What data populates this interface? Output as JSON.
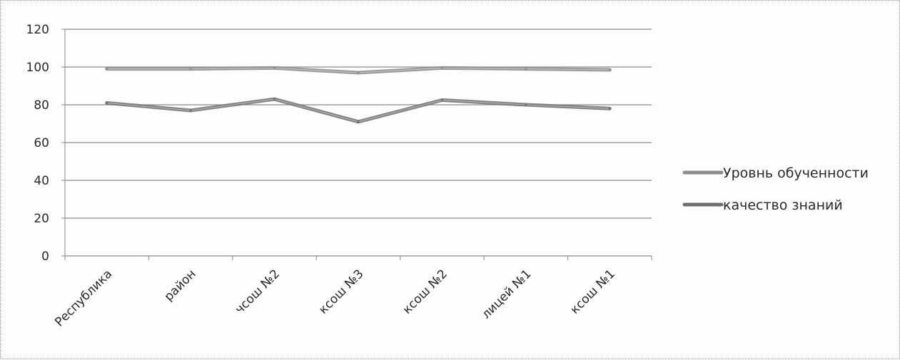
{
  "chart_data": {
    "type": "line",
    "title": "",
    "xlabel": "",
    "ylabel": "",
    "categories": [
      "Республика",
      "район",
      "чсош №2",
      "ксош №3",
      "ксош №2",
      "лицей №1",
      "ксош №1"
    ],
    "ylim": [
      0,
      120
    ],
    "yticks": [
      0,
      20,
      40,
      60,
      80,
      100,
      120
    ],
    "grid": true,
    "legend_position": "right",
    "series": [
      {
        "name": "Уровнь обученности",
        "values": [
          99,
          99,
          99.5,
          97,
          99.5,
          99,
          98.5
        ],
        "color": "#8c8c8c"
      },
      {
        "name": "качество знаний",
        "values": [
          81,
          77,
          83,
          71,
          82.5,
          80,
          78
        ],
        "color": "#6e6e6e"
      }
    ]
  }
}
